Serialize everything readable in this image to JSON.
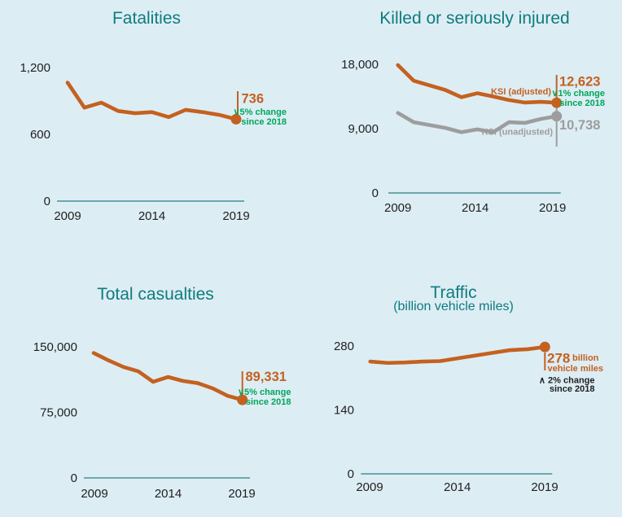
{
  "colors": {
    "background": "#ddedf4",
    "orange": "#c4611f",
    "gray": "#9d9d9d",
    "green": "#00a65c",
    "teal_title": "#0e7c7e",
    "axis": "#2a7f85",
    "tick_text": "#1f1f1f",
    "dark_note": "#1f1f1f"
  },
  "chart_data": [
    {
      "type": "line",
      "title": "Fatalities",
      "x": [
        2009,
        2010,
        2011,
        2012,
        2013,
        2014,
        2015,
        2016,
        2017,
        2018,
        2019
      ],
      "x_tick_labels": [
        "2009",
        "2014",
        "2019"
      ],
      "ylim": [
        0,
        1200
      ],
      "y_ticks": [
        {
          "label": "1,200",
          "value": 1200
        },
        {
          "label": "600",
          "value": 600
        },
        {
          "label": "0",
          "value": 0
        }
      ],
      "grid": false,
      "series": [
        {
          "name": "Fatalities",
          "color_key": "orange",
          "values": [
            1065,
            840,
            885,
            810,
            790,
            800,
            755,
            820,
            800,
            775,
            736
          ]
        }
      ],
      "labels": {
        "end_value": "736",
        "change_line1": "∨5% change",
        "change_line2": "since 2018"
      }
    },
    {
      "type": "line",
      "title": "Killed or seriously injured",
      "x": [
        2009,
        2010,
        2011,
        2012,
        2013,
        2014,
        2015,
        2016,
        2017,
        2018,
        2019
      ],
      "x_tick_labels": [
        "2009",
        "2014",
        "2019"
      ],
      "ylim": [
        0,
        18000
      ],
      "y_ticks": [
        {
          "label": "18,000",
          "value": 18000
        },
        {
          "label": "9,000",
          "value": 9000
        },
        {
          "label": "0",
          "value": 0
        }
      ],
      "grid": false,
      "series": [
        {
          "name": "KSI (adjusted)",
          "color_key": "orange",
          "values": [
            17900,
            15700,
            15050,
            14400,
            13400,
            13950,
            13500,
            13000,
            12650,
            12750,
            12623
          ]
        },
        {
          "name": "KSI (unadjusted)",
          "color_key": "gray",
          "values": [
            11200,
            9900,
            9500,
            9100,
            8500,
            8900,
            8500,
            9900,
            9800,
            10350,
            10738
          ]
        }
      ],
      "labels": {
        "adjusted_value": "12,623",
        "unadjusted_value": "10,738",
        "adjusted_series": "KSI (adjusted)",
        "unadjusted_series": "KSI (unadjusted)",
        "change_line1": "∨1% change",
        "change_line2": "since 2018"
      }
    },
    {
      "type": "line",
      "title": "Total casualties",
      "x": [
        2009,
        2010,
        2011,
        2012,
        2013,
        2014,
        2015,
        2016,
        2017,
        2018,
        2019
      ],
      "x_tick_labels": [
        "2009",
        "2014",
        "2019"
      ],
      "ylim": [
        0,
        150000
      ],
      "y_ticks": [
        {
          "label": "150,000",
          "value": 150000
        },
        {
          "label": "75,000",
          "value": 75000
        },
        {
          "label": "0",
          "value": 0
        }
      ],
      "grid": false,
      "series": [
        {
          "name": "Total casualties",
          "color_key": "orange",
          "values": [
            143000,
            134500,
            127000,
            122000,
            110000,
            115500,
            111000,
            108500,
            102500,
            94000,
            89331
          ]
        }
      ],
      "labels": {
        "end_value": "89,331",
        "change_line1": "∨5% change",
        "change_line2": "since 2018"
      }
    },
    {
      "type": "line",
      "title": "Traffic",
      "subtitle": "(billion vehicle miles)",
      "x": [
        2009,
        2010,
        2011,
        2012,
        2013,
        2014,
        2015,
        2016,
        2017,
        2018,
        2019
      ],
      "x_tick_labels": [
        "2009",
        "2014",
        "2019"
      ],
      "ylim": [
        0,
        280
      ],
      "y_ticks": [
        {
          "label": "280",
          "value": 280
        },
        {
          "label": "140",
          "value": 140
        },
        {
          "label": "0",
          "value": 0
        }
      ],
      "grid": false,
      "series": [
        {
          "name": "Traffic",
          "color_key": "orange",
          "values": [
            246,
            243,
            244,
            246,
            247,
            253,
            259,
            265,
            271,
            273,
            278
          ]
        }
      ],
      "labels": {
        "end_value": "278",
        "unit_line1": "billion",
        "unit_line2": "vehicle miles",
        "change_line1": "∧ 2% change",
        "change_line2": "since 2018"
      }
    }
  ]
}
